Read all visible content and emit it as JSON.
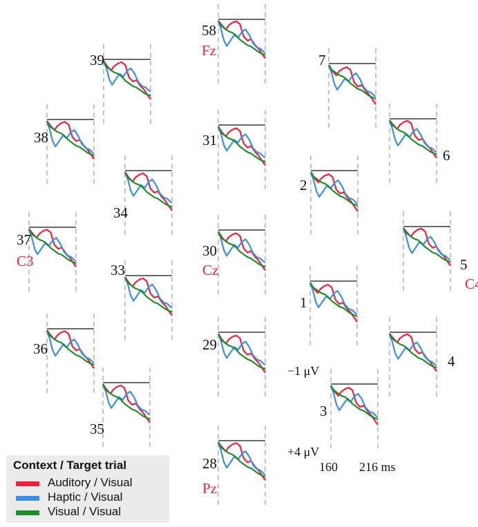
{
  "chart_data": {
    "type": "line",
    "title": "",
    "legend": {
      "title": "Context / Target trial",
      "placement": "bottom-left",
      "entries": [
        "Auditory / Visual",
        "Haptic / Visual",
        "Visual / Visual"
      ]
    },
    "series_colors": {
      "Auditory / Visual": "#f0203a",
      "Haptic / Visual": "#3a8ee6",
      "Visual / Visual": "#1f8c2a"
    },
    "x_axis": {
      "ticks": [
        "160",
        "216 ms"
      ],
      "range_ms": [
        160,
        216
      ]
    },
    "y_axis": {
      "ticks": [
        "−1 μV",
        "+4 μV"
      ],
      "range_uV": [
        -1,
        4
      ],
      "direction": "negative up"
    },
    "electrodes": [
      {
        "number": "58",
        "name": "Fz"
      },
      {
        "number": "39",
        "name": ""
      },
      {
        "number": "7",
        "name": ""
      },
      {
        "number": "38",
        "name": ""
      },
      {
        "number": "31",
        "name": ""
      },
      {
        "number": "6",
        "name": ""
      },
      {
        "number": "34",
        "name": ""
      },
      {
        "number": "2",
        "name": ""
      },
      {
        "number": "37",
        "name": "C3"
      },
      {
        "number": "30",
        "name": "Cz"
      },
      {
        "number": "5",
        "name": "C4"
      },
      {
        "number": "33",
        "name": ""
      },
      {
        "number": "1",
        "name": ""
      },
      {
        "number": "36",
        "name": ""
      },
      {
        "number": "29",
        "name": ""
      },
      {
        "number": "4",
        "name": ""
      },
      {
        "number": "35",
        "name": ""
      },
      {
        "number": "3",
        "name": ""
      },
      {
        "number": "28",
        "name": "Pz"
      }
    ]
  }
}
